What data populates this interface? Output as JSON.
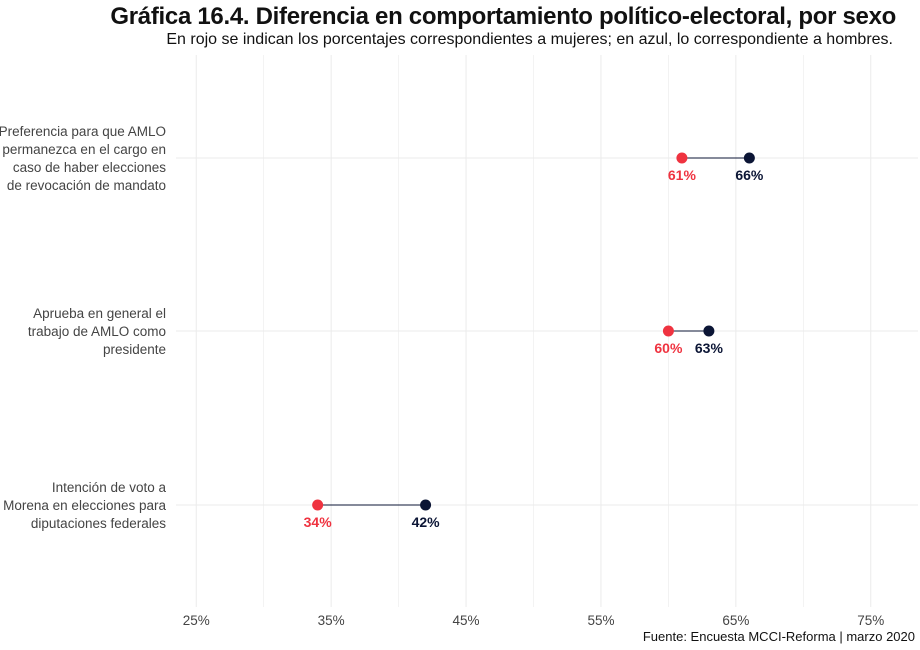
{
  "title": "Gráfica 16.4. Diferencia en comportamiento político-electoral, por sexo",
  "subtitle": "En rojo se indican los porcentajes correspondientes a mujeres; en azul, lo correspondiente a hombres.",
  "caption": "Fuente: Encuesta MCCI-Reforma | marzo 2020",
  "colors": {
    "mujeres": "#ef3340",
    "hombres": "#0b1535",
    "connector": "#0b1535",
    "grid": "#ebebeb"
  },
  "chart_data": {
    "type": "dumbbell",
    "title": "Gráfica 16.4. Diferencia en comportamiento político-electoral, por sexo",
    "subtitle": "En rojo se indican los porcentajes correspondientes a mujeres; en azul, lo correspondiente a hombres.",
    "xlabel": "",
    "ylabel": "",
    "xlim": [
      23.5,
      78.5
    ],
    "x_ticks": [
      25,
      35,
      45,
      55,
      65,
      75
    ],
    "x_tick_labels": [
      "25%",
      "35%",
      "45%",
      "55%",
      "65%",
      "75%"
    ],
    "grid": true,
    "categories": [
      [
        "Preferencia para que AMLO",
        "permanezca en el cargo en",
        "caso de haber elecciones",
        "de revocación de mandato"
      ],
      [
        "Aprueba en general el",
        "trabajo de AMLO como",
        "presidente"
      ],
      [
        "Intención de voto a",
        "Morena en elecciones para",
        "diputaciones federales"
      ]
    ],
    "series": [
      {
        "values": [
          61,
          60,
          34
        ],
        "labels": [
          "61%",
          "60%",
          "34%"
        ]
      },
      {
        "values": [
          66,
          63,
          42
        ],
        "labels": [
          "66%",
          "63%",
          "42%"
        ]
      }
    ]
  }
}
